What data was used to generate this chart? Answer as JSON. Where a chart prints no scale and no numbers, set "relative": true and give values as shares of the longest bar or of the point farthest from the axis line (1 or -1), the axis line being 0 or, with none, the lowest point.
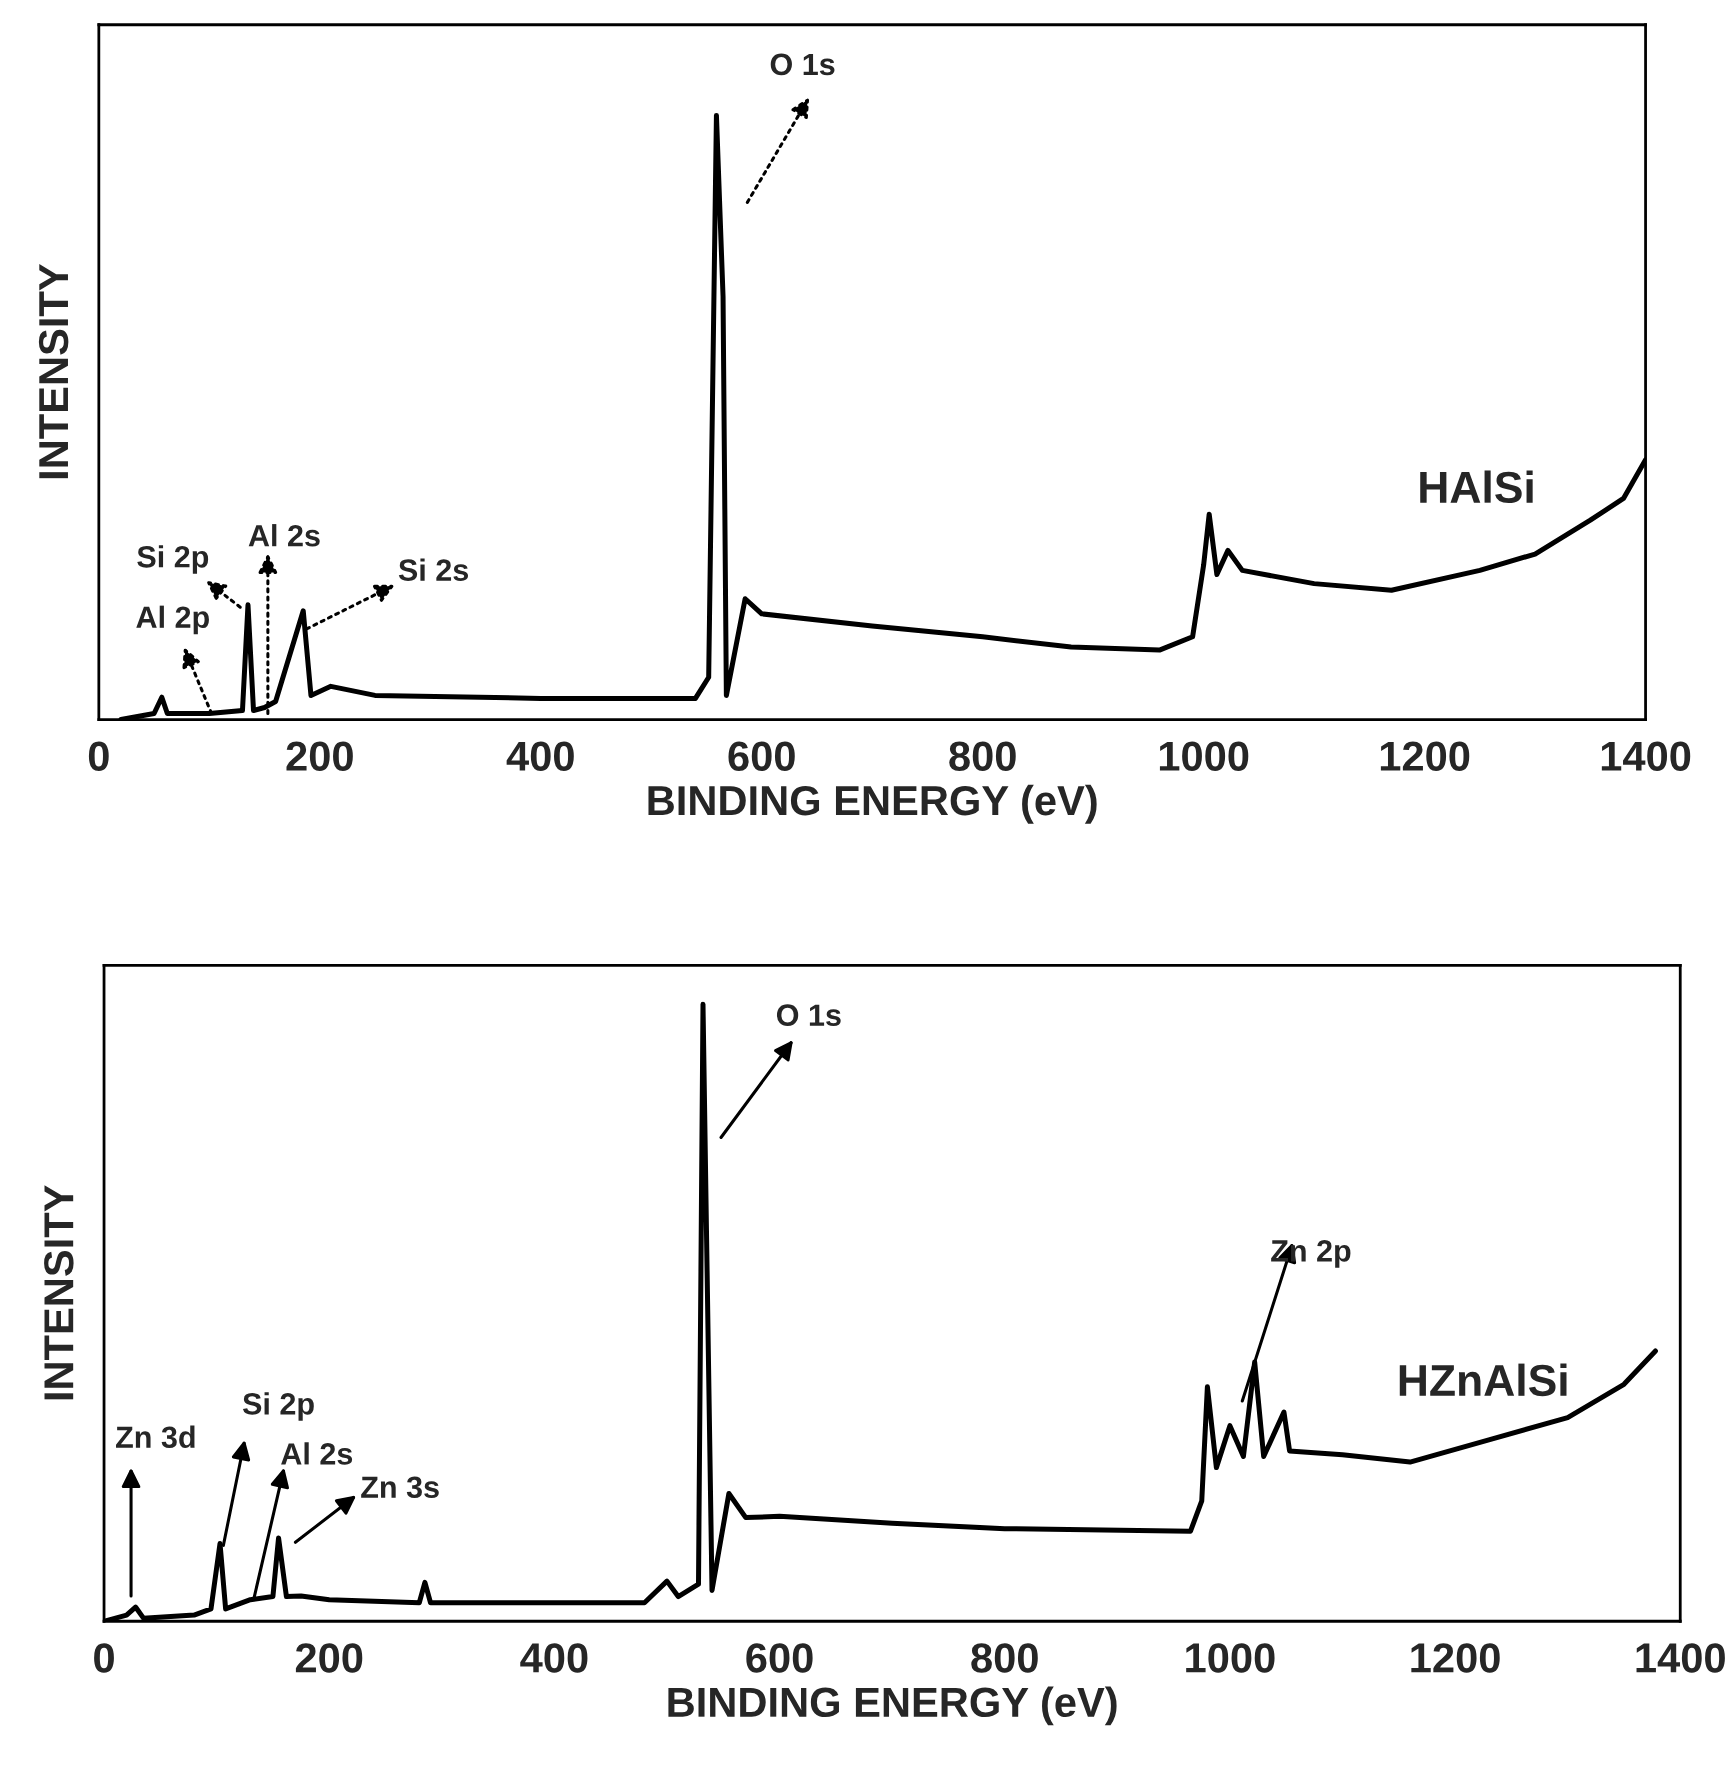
{
  "chart_data": [
    {
      "type": "line",
      "relative": true,
      "xlabel": "BINDING ENERGY (eV)",
      "ylabel": "INTENSITY",
      "xlim": [
        0,
        1400
      ],
      "xticks": [
        0,
        200,
        400,
        600,
        800,
        1000,
        1200,
        1400
      ],
      "tick_labels": "x",
      "grid": false,
      "legend": false,
      "marker": "none",
      "line_style": "solid",
      "series": [
        {
          "color": "#000000",
          "x": [
            20,
            50,
            57,
            62,
            100,
            130,
            135,
            140,
            150,
            160,
            185,
            192,
            210,
            250,
            400,
            540,
            552,
            559,
            565,
            568,
            585,
            600,
            700,
            800,
            880,
            960,
            990,
            1000,
            1005,
            1012,
            1022,
            1035,
            1100,
            1170,
            1250,
            1300,
            1350,
            1380,
            1400
          ],
          "values": [
            0,
            0.01,
            0.037,
            0.01,
            0.01,
            0.015,
            0.19,
            0.015,
            0.02,
            0.03,
            0.18,
            0.04,
            0.055,
            0.04,
            0.035,
            0.035,
            0.07,
            1.0,
            0.7,
            0.04,
            0.2,
            0.175,
            0.155,
            0.137,
            0.12,
            0.115,
            0.137,
            0.256,
            0.34,
            0.24,
            0.28,
            0.247,
            0.225,
            0.214,
            0.247,
            0.274,
            0.33,
            0.366,
            0.43
          ]
        }
      ],
      "annotations": [
        "O 1s",
        "Si 2p",
        "Al 2s",
        "Al 2p",
        "Si 2s",
        "HAlSi"
      ]
    },
    {
      "type": "line",
      "relative": true,
      "xlabel": "BINDING ENERGY (eV)",
      "ylabel": "INTENSITY",
      "xlim": [
        0,
        1400
      ],
      "xticks": [
        0,
        200,
        400,
        600,
        800,
        1000,
        1200,
        1400
      ],
      "tick_labels": "x",
      "grid": false,
      "legend": false,
      "marker": "none",
      "line_style": "solid",
      "series": [
        {
          "color": "#000000",
          "x": [
            0,
            20,
            28,
            35,
            80,
            95,
            103,
            108,
            130,
            150,
            155,
            162,
            175,
            200,
            280,
            285,
            290,
            400,
            480,
            500,
            510,
            528,
            532,
            540,
            555,
            570,
            600,
            700,
            800,
            965,
            975,
            980,
            988,
            1000,
            1012,
            1022,
            1030,
            1048,
            1053,
            1100,
            1160,
            1230,
            1300,
            1350,
            1378
          ],
          "values": [
            0,
            0.01,
            0.023,
            0.005,
            0.01,
            0.02,
            0.126,
            0.02,
            0.035,
            0.04,
            0.135,
            0.04,
            0.041,
            0.035,
            0.03,
            0.063,
            0.03,
            0.03,
            0.03,
            0.065,
            0.04,
            0.06,
            1.0,
            0.05,
            0.207,
            0.168,
            0.17,
            0.159,
            0.15,
            0.146,
            0.195,
            0.38,
            0.249,
            0.317,
            0.267,
            0.42,
            0.267,
            0.339,
            0.276,
            0.27,
            0.258,
            0.294,
            0.33,
            0.384,
            0.438
          ]
        }
      ],
      "annotations": [
        "O 1s",
        "Zn 2p",
        "Zn 3d",
        "Si 2p",
        "Al 2s",
        "Zn 3s",
        "HZnAlSi"
      ]
    }
  ]
}
